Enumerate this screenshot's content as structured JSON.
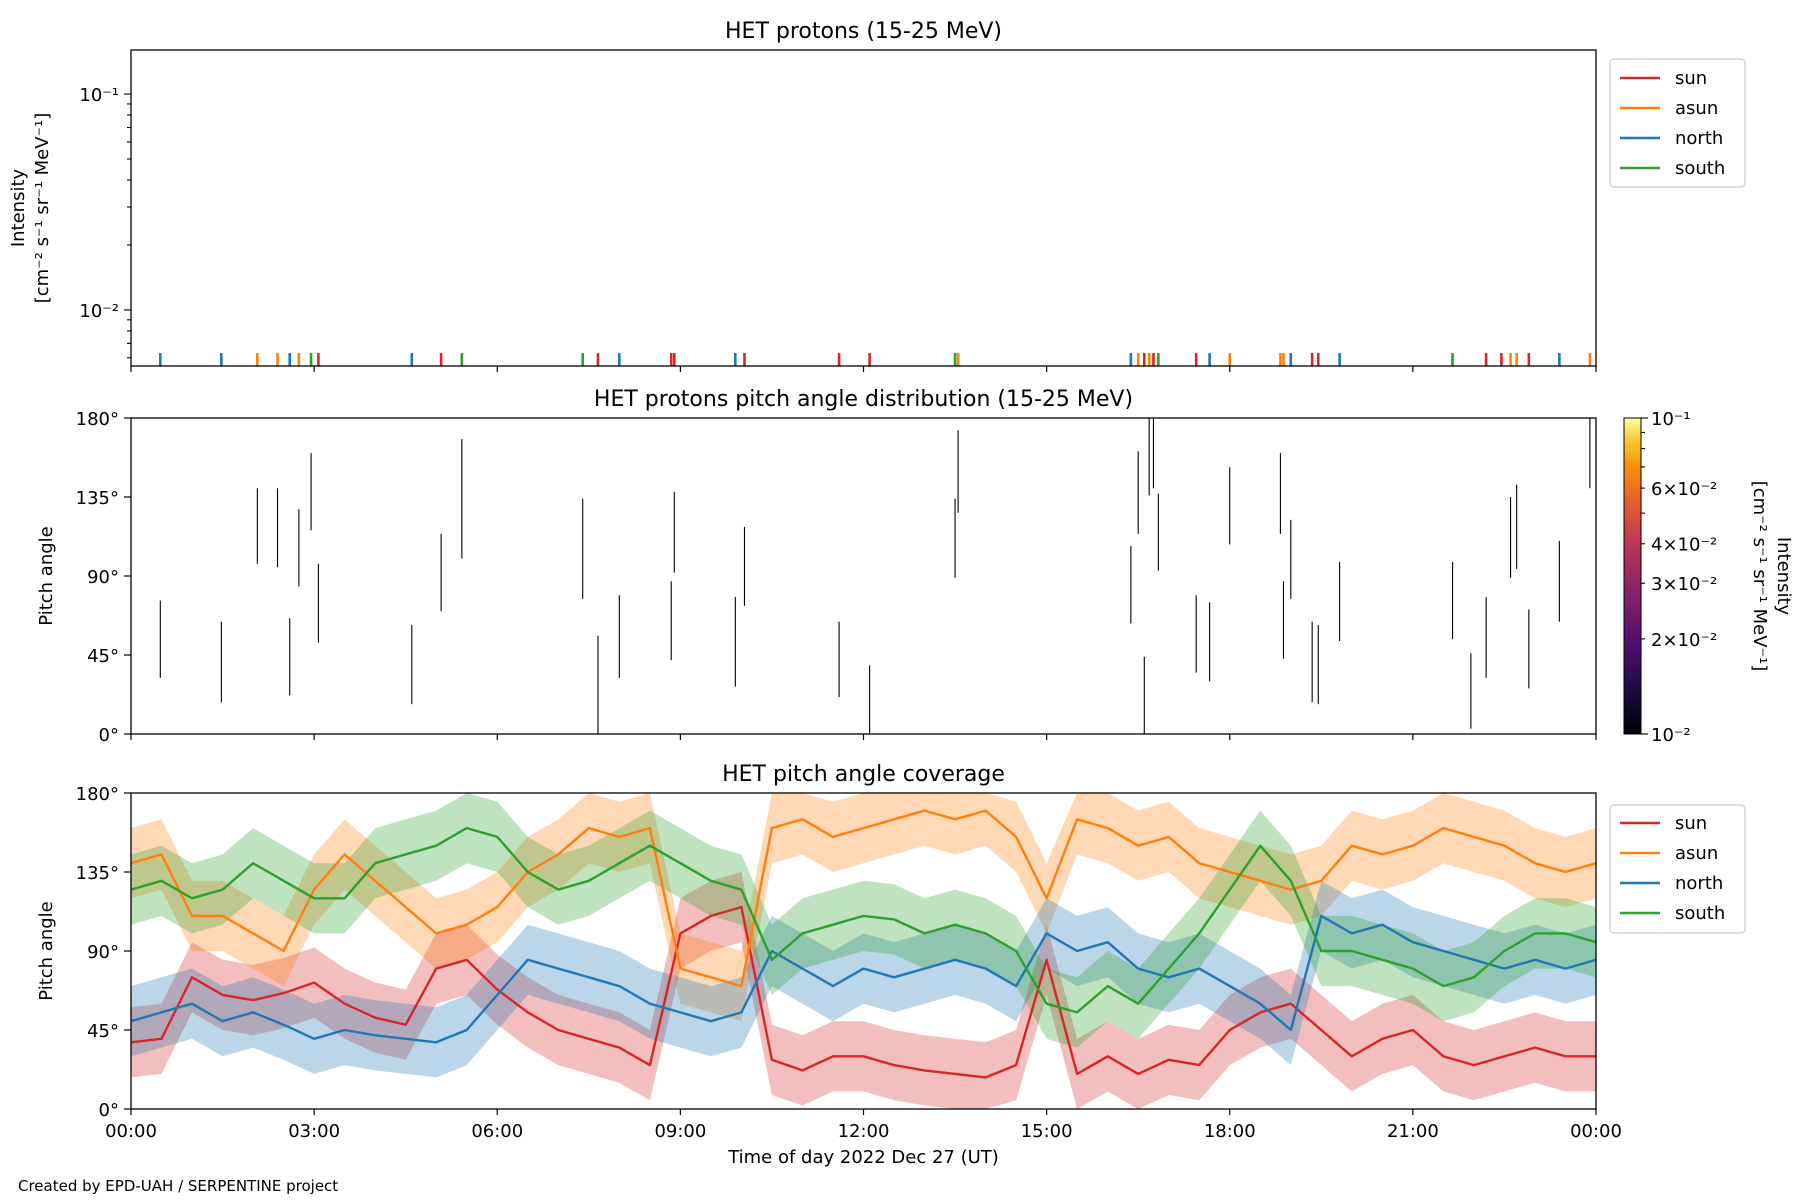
{
  "figure": {
    "credit": "Created by EPD-UAH / SERPENTINE project",
    "xlabel": "Time of day 2022 Dec 27 (UT)",
    "x_ticks": [
      "00:00",
      "03:00",
      "06:00",
      "09:00",
      "12:00",
      "15:00",
      "18:00",
      "21:00",
      "00:00"
    ]
  },
  "colors": {
    "sun": "#d62728",
    "asun": "#ff7f0e",
    "north": "#1f77b4",
    "south": "#2ca02c"
  },
  "chart_data": [
    {
      "type": "line",
      "title": "HET protons (15-25 MeV)",
      "ylabel_line1": "Intensity",
      "ylabel_line2": "[cm⁻² s⁻¹ sr⁻¹ MeV⁻¹]",
      "yscale": "log",
      "ylim": [
        0.0055,
        0.16
      ],
      "xlim_hours": [
        0,
        24
      ],
      "y_ticks": [
        {
          "value": 0.01,
          "label": "10⁻²"
        },
        {
          "value": 0.1,
          "label": "10⁻¹"
        }
      ],
      "legend": [
        "sun",
        "asun",
        "north",
        "south"
      ],
      "legend_position": "upper-right-outside",
      "spike_value": 0.0058,
      "series": [
        {
          "name": "sun",
          "x_hours": [
            3.07,
            5.08,
            7.65,
            8.85,
            8.9,
            10.05,
            11.6,
            12.1,
            16.6,
            16.75,
            17.45,
            19.35,
            19.45,
            22.2,
            22.45,
            22.9
          ]
        },
        {
          "name": "asun",
          "x_hours": [
            2.07,
            2.4,
            2.75,
            13.55,
            16.5,
            16.68,
            18.0,
            18.83,
            18.88,
            22.6,
            22.7,
            23.9
          ]
        },
        {
          "name": "north",
          "x_hours": [
            0.48,
            1.48,
            2.6,
            4.6,
            8.0,
            9.9,
            16.38,
            17.67,
            19.0,
            19.8,
            23.4
          ]
        },
        {
          "name": "south",
          "x_hours": [
            2.95,
            5.42,
            7.4,
            13.5,
            16.83,
            21.65
          ]
        }
      ]
    },
    {
      "type": "heatmap",
      "title": "HET protons pitch angle distribution (15-25 MeV)",
      "ylabel": "Pitch angle",
      "ylim": [
        0,
        180
      ],
      "xlim_hours": [
        0,
        24
      ],
      "y_ticks": [
        "0°",
        "45°",
        "90°",
        "135°",
        "180°"
      ],
      "y_tick_values": [
        0,
        45,
        90,
        135,
        180
      ],
      "colorbar": {
        "label_line1": "Intensity",
        "label_line2": "[cm⁻² s⁻¹ sr⁻¹ MeV⁻¹]",
        "scale": "log",
        "range": [
          0.01,
          0.1
        ],
        "ticks": [
          {
            "value": 0.1,
            "label": "10⁻¹"
          },
          {
            "value": 0.06,
            "label": "6×10⁻²"
          },
          {
            "value": 0.04,
            "label": "4×10⁻²"
          },
          {
            "value": 0.03,
            "label": "3×10⁻²"
          },
          {
            "value": 0.02,
            "label": "2×10⁻²"
          },
          {
            "value": 0.01,
            "label": "10⁻²"
          }
        ]
      },
      "segments": [
        [
          0.48,
          32,
          76
        ],
        [
          1.48,
          18,
          64
        ],
        [
          2.07,
          97,
          140
        ],
        [
          2.4,
          95,
          140
        ],
        [
          2.6,
          22,
          66
        ],
        [
          2.75,
          84,
          128
        ],
        [
          2.95,
          116,
          160
        ],
        [
          3.07,
          52,
          97
        ],
        [
          4.6,
          17,
          62
        ],
        [
          5.08,
          70,
          114
        ],
        [
          5.42,
          100,
          168
        ],
        [
          7.4,
          77,
          134
        ],
        [
          7.65,
          0,
          56
        ],
        [
          8.0,
          32,
          79
        ],
        [
          8.85,
          42,
          87
        ],
        [
          8.9,
          92,
          138
        ],
        [
          9.9,
          27,
          78
        ],
        [
          10.05,
          73,
          118
        ],
        [
          11.6,
          21,
          64
        ],
        [
          12.1,
          0,
          39
        ],
        [
          13.5,
          89,
          134
        ],
        [
          13.55,
          126,
          173
        ],
        [
          16.38,
          63,
          107
        ],
        [
          16.5,
          114,
          161
        ],
        [
          16.6,
          0,
          44
        ],
        [
          16.68,
          136,
          180
        ],
        [
          16.75,
          140,
          180
        ],
        [
          16.83,
          93,
          137
        ],
        [
          17.45,
          35,
          79
        ],
        [
          17.67,
          30,
          75
        ],
        [
          18.0,
          108,
          152
        ],
        [
          18.83,
          114,
          160
        ],
        [
          18.88,
          43,
          87
        ],
        [
          19.0,
          77,
          122
        ],
        [
          19.35,
          18,
          64
        ],
        [
          19.45,
          17,
          62
        ],
        [
          19.8,
          53,
          98
        ],
        [
          21.65,
          54,
          98
        ],
        [
          21.95,
          3,
          46
        ],
        [
          22.2,
          32,
          78
        ],
        [
          22.6,
          89,
          135
        ],
        [
          22.7,
          94,
          142
        ],
        [
          22.9,
          26,
          71
        ],
        [
          23.4,
          64,
          110
        ],
        [
          23.9,
          140,
          180
        ]
      ]
    },
    {
      "type": "line",
      "title": "HET pitch angle coverage",
      "ylabel": "Pitch angle",
      "ylim": [
        0,
        180
      ],
      "xlim_hours": [
        0,
        24
      ],
      "y_ticks": [
        "0°",
        "45°",
        "90°",
        "135°",
        "180°"
      ],
      "y_tick_values": [
        0,
        45,
        90,
        135,
        180
      ],
      "legend": [
        "sun",
        "asun",
        "north",
        "south"
      ],
      "legend_position": "upper-right-outside",
      "band_halfwidth_deg": 20,
      "x_hours": [
        0,
        0.5,
        1,
        1.5,
        2,
        2.5,
        3,
        3.5,
        4,
        4.5,
        5,
        5.5,
        6,
        6.5,
        7,
        7.5,
        8,
        8.5,
        9,
        9.5,
        10,
        10.5,
        11,
        11.5,
        12,
        12.5,
        13,
        13.5,
        14,
        14.5,
        15,
        15.5,
        16,
        16.5,
        17,
        17.5,
        18,
        18.5,
        19,
        19.5,
        20,
        20.5,
        21,
        21.5,
        22,
        22.5,
        23,
        23.5,
        24
      ],
      "series": [
        {
          "name": "sun",
          "values": [
            38,
            40,
            75,
            65,
            62,
            66,
            72,
            60,
            52,
            48,
            80,
            85,
            68,
            55,
            45,
            40,
            35,
            25,
            100,
            110,
            115,
            28,
            22,
            30,
            30,
            25,
            22,
            20,
            18,
            25,
            85,
            20,
            30,
            20,
            28,
            25,
            45,
            55,
            60,
            45,
            30,
            40,
            45,
            30,
            25,
            30,
            35,
            30,
            30
          ]
        },
        {
          "name": "asun",
          "values": [
            140,
            145,
            110,
            110,
            100,
            90,
            125,
            145,
            130,
            115,
            100,
            105,
            115,
            135,
            145,
            160,
            155,
            160,
            80,
            75,
            70,
            160,
            165,
            155,
            160,
            165,
            170,
            165,
            170,
            155,
            120,
            165,
            160,
            150,
            155,
            140,
            135,
            130,
            125,
            130,
            150,
            145,
            150,
            160,
            155,
            150,
            140,
            135,
            140
          ]
        },
        {
          "name": "north",
          "values": [
            50,
            55,
            60,
            50,
            55,
            48,
            40,
            45,
            42,
            40,
            38,
            45,
            65,
            85,
            80,
            75,
            70,
            60,
            55,
            50,
            55,
            90,
            80,
            70,
            80,
            75,
            80,
            85,
            80,
            70,
            100,
            90,
            95,
            80,
            75,
            80,
            70,
            60,
            45,
            110,
            100,
            105,
            95,
            90,
            85,
            80,
            85,
            80,
            85
          ]
        },
        {
          "name": "south",
          "values": [
            125,
            130,
            120,
            125,
            140,
            130,
            120,
            120,
            140,
            145,
            150,
            160,
            155,
            135,
            125,
            130,
            140,
            150,
            140,
            130,
            125,
            85,
            100,
            105,
            110,
            108,
            100,
            105,
            100,
            90,
            60,
            55,
            70,
            60,
            80,
            100,
            125,
            150,
            130,
            90,
            90,
            85,
            80,
            70,
            75,
            90,
            100,
            100,
            95
          ]
        }
      ]
    }
  ]
}
